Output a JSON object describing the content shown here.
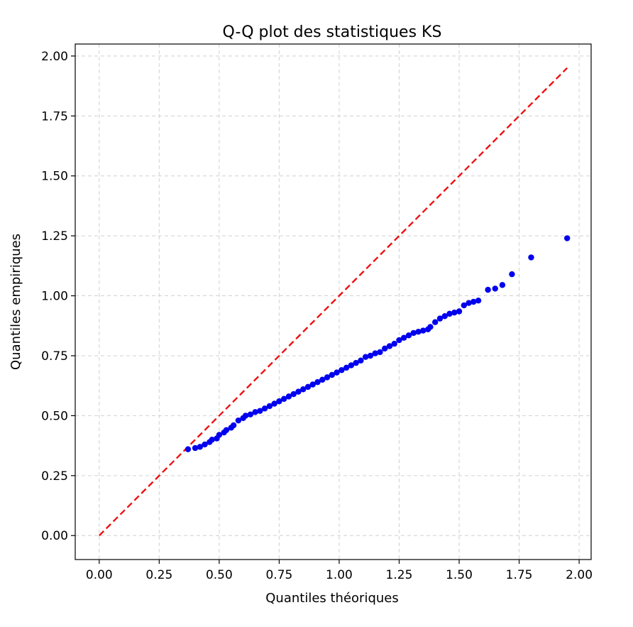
{
  "chart_data": {
    "type": "scatter",
    "title": "Q-Q plot des statistiques KS",
    "xlabel": "Quantiles théoriques",
    "ylabel": "Quantiles empiriques",
    "xlim": [
      -0.1,
      2.05
    ],
    "ylim": [
      -0.1,
      2.05
    ],
    "xticks": [
      0.0,
      0.25,
      0.5,
      0.75,
      1.0,
      1.25,
      1.5,
      1.75,
      2.0
    ],
    "yticks": [
      0.0,
      0.25,
      0.5,
      0.75,
      1.0,
      1.25,
      1.5,
      1.75,
      2.0
    ],
    "xtick_labels": [
      "0.00",
      "0.25",
      "0.50",
      "0.75",
      "1.00",
      "1.25",
      "1.50",
      "1.75",
      "2.00"
    ],
    "ytick_labels": [
      "0.00",
      "0.25",
      "0.50",
      "0.75",
      "1.00",
      "1.25",
      "1.50",
      "1.75",
      "2.00"
    ],
    "grid": true,
    "colors": {
      "points": "#0000ee",
      "reference_line": "#ee1111",
      "grid": "#d0d0d0"
    },
    "reference_line": {
      "x": [
        0.0,
        1.95
      ],
      "y": [
        0.0,
        1.95
      ],
      "style": "dashed"
    },
    "series": [
      {
        "x": [
          0.37,
          0.4,
          0.42,
          0.44,
          0.46,
          0.47,
          0.49,
          0.5,
          0.52,
          0.53,
          0.55,
          0.56,
          0.58,
          0.6,
          0.61,
          0.63,
          0.65,
          0.67,
          0.69,
          0.71,
          0.73,
          0.75,
          0.77,
          0.79,
          0.81,
          0.83,
          0.85,
          0.87,
          0.89,
          0.91,
          0.93,
          0.95,
          0.97,
          0.99,
          1.01,
          1.03,
          1.05,
          1.07,
          1.09,
          1.11,
          1.13,
          1.15,
          1.17,
          1.19,
          1.21,
          1.23,
          1.25,
          1.27,
          1.29,
          1.31,
          1.33,
          1.35,
          1.37,
          1.38,
          1.4,
          1.42,
          1.44,
          1.46,
          1.48,
          1.5,
          1.52,
          1.54,
          1.56,
          1.58,
          1.62,
          1.65,
          1.68,
          1.72,
          1.8,
          1.95
        ],
        "y": [
          0.36,
          0.365,
          0.37,
          0.38,
          0.39,
          0.4,
          0.405,
          0.42,
          0.43,
          0.44,
          0.45,
          0.46,
          0.48,
          0.49,
          0.5,
          0.505,
          0.515,
          0.52,
          0.53,
          0.54,
          0.55,
          0.56,
          0.57,
          0.58,
          0.59,
          0.6,
          0.61,
          0.62,
          0.63,
          0.64,
          0.65,
          0.66,
          0.67,
          0.68,
          0.69,
          0.7,
          0.71,
          0.72,
          0.73,
          0.745,
          0.75,
          0.76,
          0.765,
          0.78,
          0.79,
          0.8,
          0.815,
          0.825,
          0.835,
          0.845,
          0.85,
          0.855,
          0.86,
          0.87,
          0.89,
          0.905,
          0.915,
          0.925,
          0.93,
          0.935,
          0.96,
          0.97,
          0.975,
          0.98,
          1.025,
          1.03,
          1.045,
          1.09,
          1.16,
          1.24
        ]
      }
    ]
  }
}
